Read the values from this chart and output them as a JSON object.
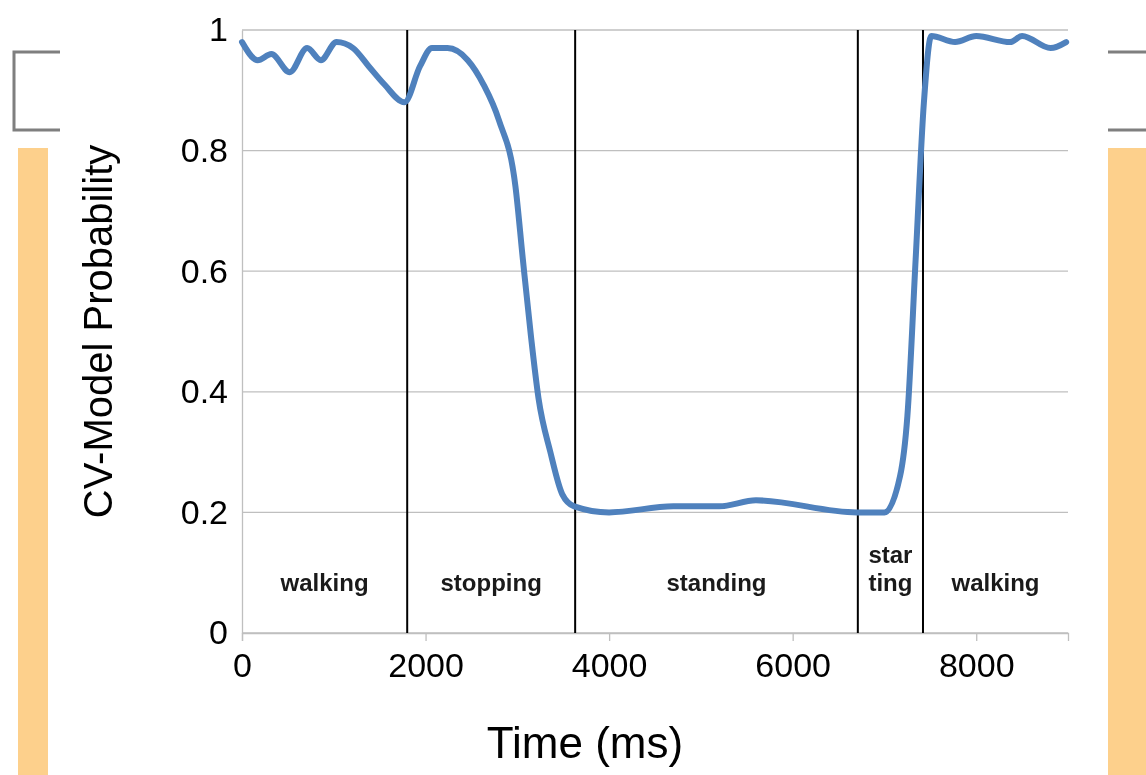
{
  "chart_data": {
    "type": "line",
    "xlabel": "Time (ms)",
    "ylabel": "CV-Model Probability",
    "xlim": [
      0,
      9000
    ],
    "ylim": [
      0,
      1
    ],
    "xticks": [
      0,
      2000,
      4000,
      6000,
      8000
    ],
    "yticks": [
      0,
      0.2,
      0.4,
      0.6,
      0.8,
      1
    ],
    "grid": "y",
    "marker": "none",
    "line_style": "solid",
    "series": [
      {
        "color": "#4f81bd",
        "x": [
          0,
          170,
          320,
          520,
          710,
          860,
          1030,
          1210,
          1380,
          1550,
          1770,
          1940,
          2070,
          2240,
          2460,
          2630,
          2800,
          2980,
          3060,
          3150,
          3230,
          3360,
          3490,
          3620,
          4000,
          4700,
          5200,
          5600,
          6700,
          7000,
          7170,
          7250,
          7340,
          7430,
          7510,
          7770,
          8000,
          8370,
          8500,
          8810,
          8980
        ],
        "values": [
          0.98,
          0.95,
          0.96,
          0.93,
          0.97,
          0.95,
          0.98,
          0.97,
          0.94,
          0.91,
          0.88,
          0.94,
          0.97,
          0.97,
          0.95,
          0.91,
          0.85,
          0.74,
          0.62,
          0.49,
          0.39,
          0.3,
          0.23,
          0.21,
          0.2,
          0.21,
          0.21,
          0.22,
          0.2,
          0.2,
          0.26,
          0.36,
          0.62,
          0.88,
          0.99,
          0.98,
          0.99,
          0.98,
          0.99,
          0.97,
          0.98
        ]
      }
    ],
    "ref_lines": [
      {
        "axis": "x",
        "value": 1800,
        "color": "#000000"
      },
      {
        "axis": "x",
        "value": 3630,
        "color": "#000000"
      },
      {
        "axis": "x",
        "value": 6710,
        "color": "#000000"
      },
      {
        "axis": "x",
        "value": 7420,
        "color": "#000000"
      }
    ],
    "annotations": [
      "walking",
      "stopping",
      "standing",
      "star\nting",
      "walking"
    ]
  }
}
